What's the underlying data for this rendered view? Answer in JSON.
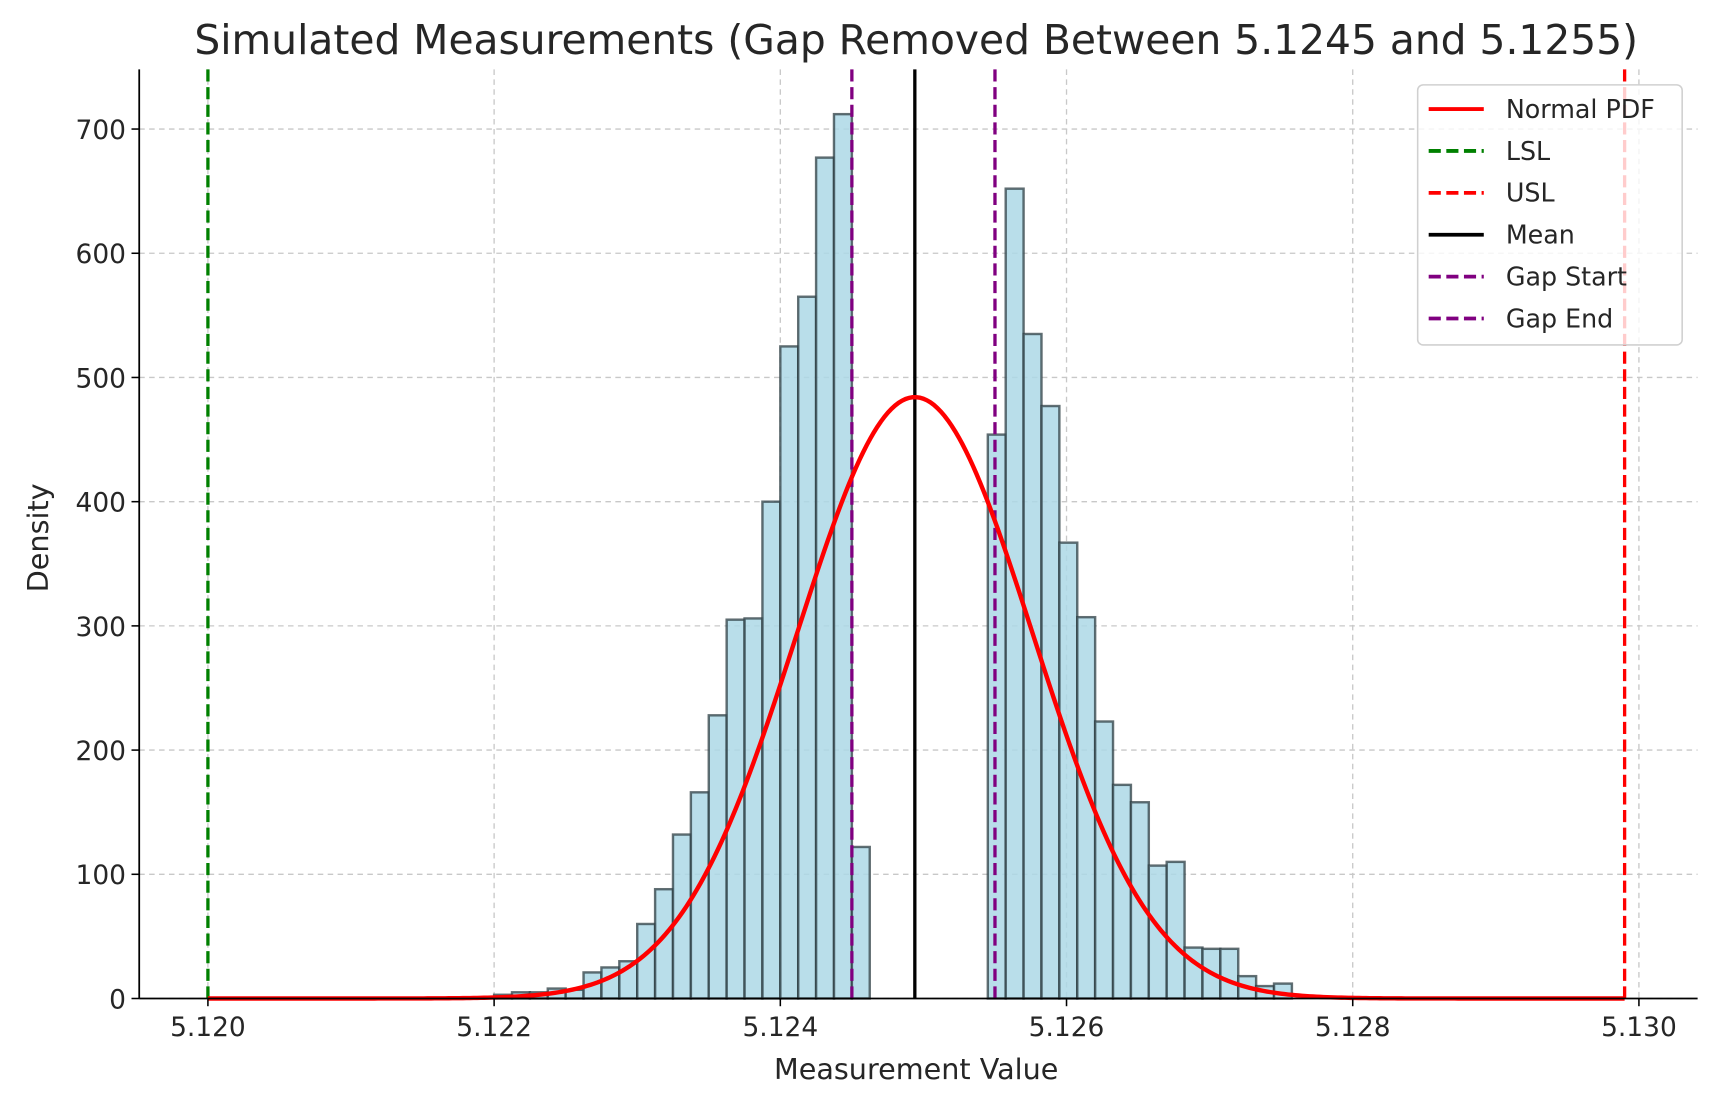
{
  "chart_data": {
    "type": "bar",
    "title": "Simulated Measurements (Gap Removed Between 5.1245 and 5.1255)",
    "xlabel": "Measurement Value",
    "ylabel": "Density",
    "xlim": [
      5.11952,
      5.13041
    ],
    "ylim": [
      0,
      748
    ],
    "grid": true,
    "xticks": [
      "5.120",
      "5.122",
      "5.124",
      "5.126",
      "5.128",
      "5.130"
    ],
    "xtick_values": [
      5.12,
      5.122,
      5.124,
      5.126,
      5.128,
      5.13
    ],
    "yticks": [
      "0",
      "100",
      "200",
      "300",
      "400",
      "500",
      "600",
      "700"
    ],
    "ytick_values": [
      0,
      100,
      200,
      300,
      400,
      500,
      600,
      700
    ],
    "bin_width": 0.000125,
    "histogram": [
      {
        "start": 5.122,
        "values": [
          3,
          5,
          5,
          8,
          7,
          21,
          25,
          30,
          60,
          88,
          132,
          166,
          228,
          305,
          306,
          400,
          525,
          565,
          677,
          712,
          122
        ]
      },
      {
        "start": 5.12545,
        "values": [
          454,
          652,
          535,
          477,
          367,
          307,
          223,
          172,
          158,
          107,
          110,
          41,
          40,
          40,
          18,
          10,
          12
        ]
      }
    ],
    "bar_color": "#add8e6",
    "normal_pdf": {
      "mean": 5.12494,
      "std": 0.000824,
      "x_range": [
        5.12,
        5.1299
      ],
      "color": "#ff0000"
    },
    "lines": [
      {
        "name": "LSL",
        "x": 5.12,
        "color": "#008000",
        "style": "dashed"
      },
      {
        "name": "USL",
        "x": 5.1299,
        "color": "#ff0000",
        "style": "dashed"
      },
      {
        "name": "Mean",
        "x": 5.12494,
        "color": "#000000",
        "style": "solid"
      },
      {
        "name": "Gap Start",
        "x": 5.1245,
        "color": "#800080",
        "style": "dashed"
      },
      {
        "name": "Gap End",
        "x": 5.1255,
        "color": "#800080",
        "style": "dashed"
      }
    ],
    "legend": {
      "placement": "top-right",
      "entries": [
        {
          "label": "Normal PDF",
          "color": "#ff0000",
          "style": "solid"
        },
        {
          "label": "LSL",
          "color": "#008000",
          "style": "dashed"
        },
        {
          "label": "USL",
          "color": "#ff0000",
          "style": "dashed"
        },
        {
          "label": "Mean",
          "color": "#000000",
          "style": "solid"
        },
        {
          "label": "Gap Start",
          "color": "#800080",
          "style": "dashed"
        },
        {
          "label": "Gap End",
          "color": "#800080",
          "style": "dashed"
        }
      ]
    }
  }
}
